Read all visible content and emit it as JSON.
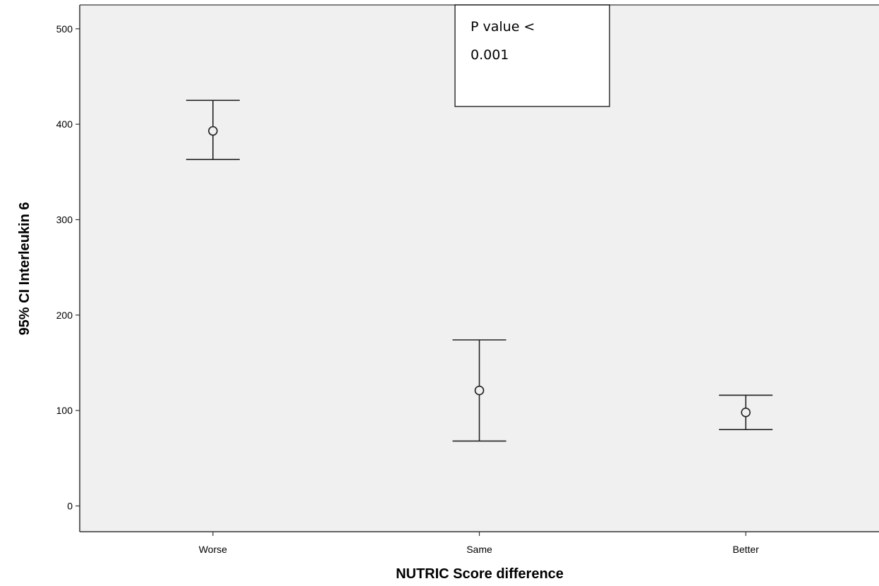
{
  "chart_data": {
    "type": "errorbar",
    "title": "",
    "xlabel": "NUTRIC Score difference",
    "ylabel": "95% CI Interleukin 6",
    "categories": [
      "Worse",
      "Same",
      "Better"
    ],
    "series": [
      {
        "mean": [
          393,
          121,
          98
        ],
        "lower": [
          363,
          68,
          80
        ],
        "upper": [
          425,
          174,
          116
        ]
      }
    ],
    "ylim": [
      -27,
      525
    ],
    "yticks": [
      0,
      100,
      200,
      300,
      400,
      500
    ],
    "ytick_labels": [
      "0",
      "100",
      "200",
      "300",
      "400",
      "500"
    ],
    "grid": false,
    "legend": "none",
    "annotation": {
      "lines": [
        "P value <",
        "0.001"
      ]
    },
    "colors": {
      "plot_background": "#f0f0f0",
      "marks": "#222222"
    }
  }
}
